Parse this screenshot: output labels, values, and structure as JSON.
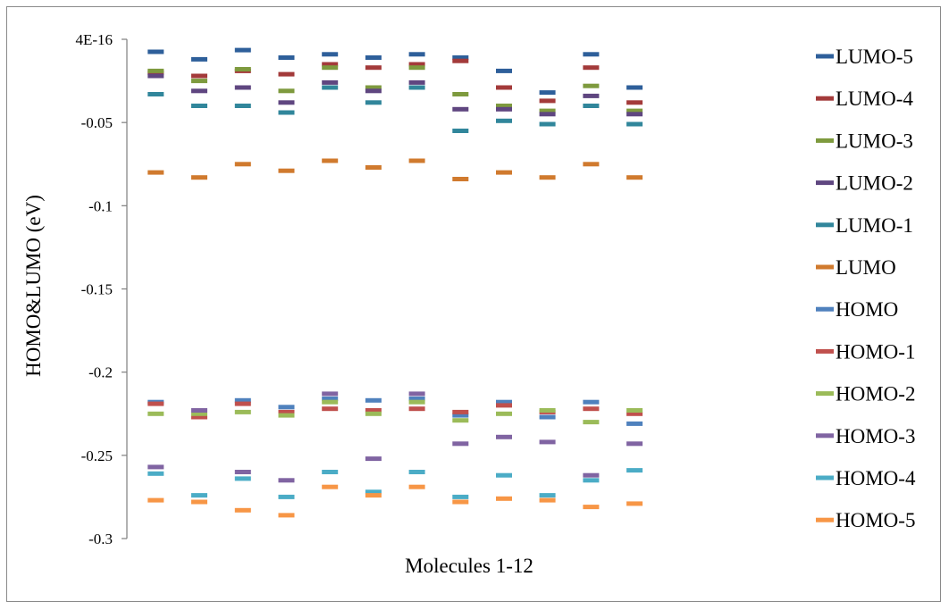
{
  "chart_data": {
    "type": "scatter",
    "marker": "dash",
    "xlabel": "Molecules 1-12",
    "ylabel": "HOMO&LUMO (eV)",
    "ylim": [
      -0.3,
      0.0
    ],
    "ytick_labels": [
      "4E-16",
      "-0.05",
      "-0.1",
      "-0.15",
      "-0.2",
      "-0.25",
      "-0.3"
    ],
    "ytick_values": [
      0.0,
      -0.05,
      -0.1,
      -0.15,
      -0.2,
      -0.25,
      -0.3
    ],
    "grid": false,
    "legend_position": "right",
    "x": [
      1,
      2,
      3,
      4,
      5,
      6,
      7,
      8,
      9,
      10,
      11,
      12
    ],
    "series": [
      {
        "name": "LUMO-5",
        "color": "#2E5F9A",
        "values": [
          -0.0075,
          -0.012,
          -0.0065,
          -0.011,
          -0.009,
          -0.011,
          -0.009,
          -0.011,
          -0.019,
          -0.032,
          -0.009,
          -0.029
        ]
      },
      {
        "name": "LUMO-4",
        "color": "#A33A3A",
        "values": [
          -0.02,
          -0.022,
          -0.019,
          -0.021,
          -0.015,
          -0.017,
          -0.015,
          -0.013,
          -0.029,
          -0.037,
          -0.017,
          -0.038
        ]
      },
      {
        "name": "LUMO-3",
        "color": "#7E9A3E",
        "values": [
          -0.019,
          -0.025,
          -0.018,
          -0.031,
          -0.017,
          -0.029,
          -0.017,
          -0.033,
          -0.04,
          -0.043,
          -0.028,
          -0.043
        ]
      },
      {
        "name": "LUMO-2",
        "color": "#5F4680",
        "values": [
          -0.022,
          -0.031,
          -0.029,
          -0.038,
          -0.026,
          -0.031,
          -0.026,
          -0.042,
          -0.042,
          -0.045,
          -0.034,
          -0.045
        ]
      },
      {
        "name": "LUMO-1",
        "color": "#31869B",
        "values": [
          -0.033,
          -0.04,
          -0.04,
          -0.044,
          -0.029,
          -0.038,
          -0.029,
          -0.055,
          -0.049,
          -0.051,
          -0.04,
          -0.051
        ]
      },
      {
        "name": "LUMO",
        "color": "#D07A2E",
        "values": [
          -0.08,
          -0.083,
          -0.075,
          -0.079,
          -0.073,
          -0.077,
          -0.073,
          -0.084,
          -0.08,
          -0.083,
          -0.075,
          -0.083
        ]
      },
      {
        "name": "HOMO",
        "color": "#4F81BD",
        "values": [
          -0.218,
          -0.224,
          -0.217,
          -0.221,
          -0.216,
          -0.217,
          -0.216,
          -0.226,
          -0.218,
          -0.227,
          -0.218,
          -0.231
        ]
      },
      {
        "name": "HOMO-1",
        "color": "#C0504D",
        "values": [
          -0.219,
          -0.227,
          -0.219,
          -0.224,
          -0.222,
          -0.223,
          -0.222,
          -0.224,
          -0.22,
          -0.224,
          -0.222,
          -0.225
        ]
      },
      {
        "name": "HOMO-2",
        "color": "#9BBB59",
        "values": [
          -0.225,
          -0.225,
          -0.224,
          -0.226,
          -0.218,
          -0.225,
          -0.218,
          -0.229,
          -0.225,
          -0.223,
          -0.23,
          -0.223
        ]
      },
      {
        "name": "HOMO-3",
        "color": "#8064A2",
        "values": [
          -0.257,
          -0.223,
          -0.26,
          -0.265,
          -0.213,
          -0.252,
          -0.213,
          -0.243,
          -0.239,
          -0.242,
          -0.262,
          -0.243
        ]
      },
      {
        "name": "HOMO-4",
        "color": "#4BACC6",
        "values": [
          -0.261,
          -0.274,
          -0.264,
          -0.275,
          -0.26,
          -0.272,
          -0.26,
          -0.275,
          -0.262,
          -0.274,
          -0.265,
          -0.259
        ]
      },
      {
        "name": "HOMO-5",
        "color": "#F79646",
        "values": [
          -0.277,
          -0.278,
          -0.283,
          -0.286,
          -0.269,
          -0.274,
          -0.269,
          -0.278,
          -0.276,
          -0.277,
          -0.281,
          -0.279
        ]
      }
    ]
  }
}
